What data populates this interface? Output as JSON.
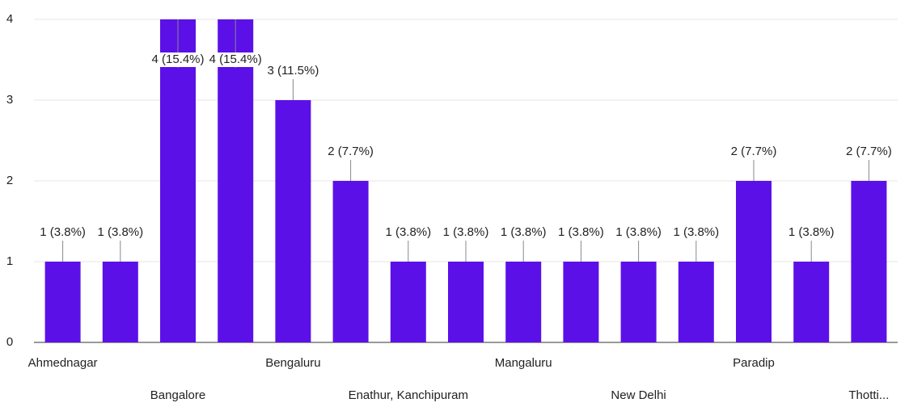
{
  "chart_data": {
    "type": "bar",
    "categories": [
      "Ahmednagar",
      null,
      "Bangalore",
      null,
      "Bengaluru",
      null,
      "Enathur, Kanchipuram",
      null,
      "Mangaluru",
      null,
      "New Delhi",
      null,
      "Paradip",
      null,
      "Thotti..."
    ],
    "values": [
      1,
      1,
      4,
      4,
      3,
      2,
      1,
      1,
      1,
      1,
      1,
      1,
      2,
      1,
      2
    ],
    "value_labels": [
      "1 (3.8%)",
      "1 (3.8%)",
      "4 (15.4%)",
      "4 (15.4%)",
      "3 (11.5%)",
      "2 (7.7%)",
      "1 (3.8%)",
      "1 (3.8%)",
      "1 (3.8%)",
      "1 (3.8%)",
      "1 (3.8%)",
      "1 (3.8%)",
      "2 (7.7%)",
      "1 (3.8%)",
      "2 (7.7%)"
    ],
    "color": "#5c10e8",
    "ylim": [
      0,
      4
    ],
    "yticks": [
      0,
      1,
      2,
      3,
      4
    ],
    "grid": true
  }
}
